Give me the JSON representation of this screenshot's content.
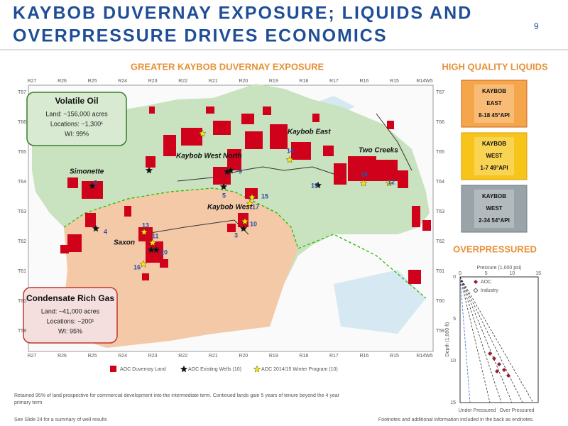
{
  "header": {
    "title_lines": [
      "KAYBOB DUVERNAY EXPOSURE; LIQUIDS AND",
      "OVERPRESSURE DRIVES ECONOMICS"
    ],
    "page_number": "9"
  },
  "map": {
    "title": "GREATER KAYBOB DUVERNAY EXPOSURE",
    "ranges": [
      "R27",
      "R26",
      "R25",
      "R24",
      "R23",
      "R22",
      "R21",
      "R20",
      "R19",
      "R18",
      "R17",
      "R16",
      "R15",
      "R14W5"
    ],
    "townships": [
      "T67",
      "T66",
      "T65",
      "T64",
      "T63",
      "T62",
      "T61",
      "T60",
      "T59"
    ],
    "volatile_oil": {
      "title": "Volatile Oil",
      "lines": [
        "Land: ~156,000 acres",
        "Locations: ~1,300¹",
        "WI: 99%"
      ]
    },
    "condensate": {
      "title": "Condensate Rich Gas",
      "lines": [
        "Land: ~41,000 acres",
        "Locations: ~200¹",
        "WI: 95%"
      ]
    },
    "areas": [
      "Simonette",
      "Kaybob West North",
      "Kaybob East",
      "Two Creeks",
      "Kaybob West",
      "Saxon"
    ],
    "well_numbers": [
      "8",
      "4",
      "13",
      "11",
      "16",
      "20",
      "9",
      "5",
      "15",
      "17",
      "10",
      "3",
      "14",
      "12",
      "18",
      "19"
    ],
    "legend": [
      "AOC Duvernay Land",
      "AOC Existing Wells (10)",
      "AOC 2014/15 Winter Program (10)"
    ]
  },
  "liquids": {
    "title": "HIGH QUALITY LIQUIDS",
    "samples": [
      [
        "KAYBOB",
        "EAST",
        "8-18 45°API"
      ],
      [
        "KAYBOB",
        "WEST",
        "1-7 49°API"
      ],
      [
        "KAYBOB",
        "WEST",
        "2-34 54°API"
      ]
    ]
  },
  "overpressure": {
    "title": "OVERPRESSURED",
    "x_label": "Pressure (1,000 psi)",
    "y_label": "Depth (1,000 ft)",
    "x_ticks": [
      "0",
      "5",
      "10",
      "15"
    ],
    "y_ticks": [
      "0",
      "5",
      "10",
      "15"
    ],
    "legend": [
      "AOC",
      "Industry"
    ],
    "zones": [
      "Under Pressured",
      "Over Pressured"
    ]
  },
  "footnotes": {
    "left": [
      "Retained 95% of land prospective for commercial development into the intermediate term. Continued lands gain 5 years of tenure beyond the 4 year",
      "primary term",
      "See Slide 24 for a summary of well results"
    ],
    "right": "Footnotes and additional information included in the back as endnotes."
  }
}
